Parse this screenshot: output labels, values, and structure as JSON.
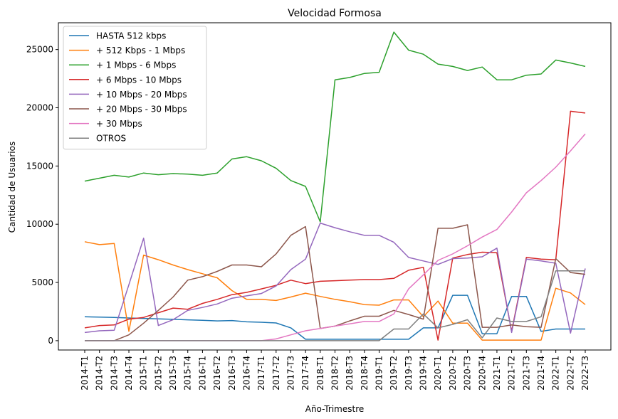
{
  "chart_data": {
    "type": "line",
    "title": "Velocidad Formosa",
    "xlabel": "Año-Trimestre",
    "ylabel": "Cantidad de Usuarios",
    "ylim": [
      -800,
      27300
    ],
    "yticks": [
      0,
      5000,
      10000,
      15000,
      20000,
      25000
    ],
    "legend_position": "upper-left",
    "grid": false,
    "categories": [
      "2014-T1",
      "2014-T2",
      "2014-T3",
      "2014-T4",
      "2015-T1",
      "2015-T2",
      "2015-T3",
      "2015-T4",
      "2016-T1",
      "2016-T2",
      "2016-T3",
      "2016-T4",
      "2017-T1",
      "2017-T2",
      "2017-T3",
      "2017-T4",
      "2018-T1",
      "2018-T2",
      "2018-T3",
      "2018-T4",
      "2019-T1",
      "2019-T2",
      "2019-T3",
      "2019-T4",
      "2020-T1",
      "2020-T2",
      "2020-T3",
      "2020-T4",
      "2021-T1",
      "2021-T2",
      "2021-T3",
      "2021-T4",
      "2022-T1",
      "2022-T2",
      "2022-T3"
    ],
    "series": [
      {
        "name": "HASTA 512 kbps",
        "color": "#1f77b4",
        "values": [
          2050,
          2020,
          1990,
          1950,
          1910,
          1870,
          1830,
          1790,
          1750,
          1700,
          1730,
          1620,
          1580,
          1520,
          1100,
          120,
          120,
          120,
          120,
          120,
          120,
          120,
          120,
          1100,
          1100,
          3900,
          3900,
          600,
          600,
          3800,
          3800,
          800,
          1000,
          1000,
          1000
        ]
      },
      {
        "name": "+ 512 Kbps - 1 Mbps",
        "color": "#ff7f0e",
        "values": [
          8500,
          8250,
          8350,
          800,
          7350,
          6950,
          6500,
          6100,
          5750,
          5400,
          4300,
          3550,
          3550,
          3450,
          3750,
          4080,
          3800,
          3550,
          3350,
          3100,
          3050,
          3500,
          3500,
          2050,
          3400,
          1500,
          1500,
          50,
          50,
          50,
          50,
          50,
          4500,
          4100,
          3100
        ]
      },
      {
        "name": "+ 1 Mbps - 6 Mbps",
        "color": "#2ca02c",
        "values": [
          13700,
          13950,
          14200,
          14050,
          14400,
          14250,
          14350,
          14300,
          14200,
          14400,
          15600,
          15800,
          15450,
          14800,
          13750,
          13250,
          10200,
          22400,
          22600,
          22950,
          23050,
          26500,
          24950,
          24600,
          23750,
          23550,
          23200,
          23500,
          22400,
          22400,
          22800,
          22900,
          24100,
          23850,
          23550
        ]
      },
      {
        "name": "+ 6 Mbps - 10 Mbps",
        "color": "#d62728",
        "values": [
          1100,
          1300,
          1350,
          1850,
          2000,
          2400,
          2800,
          2700,
          3200,
          3550,
          3950,
          4150,
          4450,
          4750,
          5200,
          4900,
          5100,
          5150,
          5200,
          5250,
          5250,
          5350,
          6050,
          6300,
          50,
          7100,
          7400,
          7600,
          7550,
          800,
          7150,
          7000,
          6950,
          19700,
          19550
        ]
      },
      {
        "name": "+ 10 Mbps - 20 Mbps",
        "color": "#9467bd",
        "values": [
          700,
          850,
          900,
          4800,
          8800,
          1300,
          1800,
          2600,
          2850,
          3150,
          3650,
          3850,
          4050,
          4700,
          6100,
          7000,
          10100,
          9700,
          9350,
          9050,
          9050,
          8450,
          7150,
          6850,
          6550,
          7050,
          7100,
          7200,
          7950,
          700,
          7000,
          6850,
          6650,
          650,
          6200
        ]
      },
      {
        "name": "+ 20 Mbps - 30 Mbps",
        "color": "#8c564b",
        "values": [
          0,
          0,
          0,
          500,
          1500,
          2600,
          3750,
          5200,
          5500,
          5950,
          6500,
          6500,
          6350,
          7450,
          9050,
          9800,
          1050,
          1250,
          1700,
          2100,
          2100,
          2600,
          2250,
          1850,
          9650,
          9650,
          9950,
          1150,
          1150,
          1350,
          1200,
          1150,
          7050,
          5850,
          5700
        ]
      },
      {
        "name": "+ 30 Mbps",
        "color": "#e377c2",
        "values": [
          0,
          0,
          0,
          0,
          0,
          0,
          0,
          0,
          0,
          0,
          0,
          0,
          0,
          150,
          500,
          850,
          1050,
          1250,
          1450,
          1650,
          1650,
          2300,
          4450,
          5650,
          6900,
          7450,
          8150,
          8900,
          9550,
          11050,
          12700,
          13750,
          14900,
          16300,
          17750
        ]
      },
      {
        "name": "OTROS",
        "color": "#7f7f7f",
        "values": [
          0,
          0,
          0,
          0,
          0,
          0,
          0,
          0,
          0,
          0,
          0,
          0,
          0,
          0,
          0,
          0,
          0,
          0,
          0,
          0,
          0,
          1000,
          1000,
          2300,
          1100,
          1400,
          1800,
          250,
          1950,
          1650,
          1650,
          2050,
          6000,
          6000,
          6000
        ]
      }
    ]
  }
}
